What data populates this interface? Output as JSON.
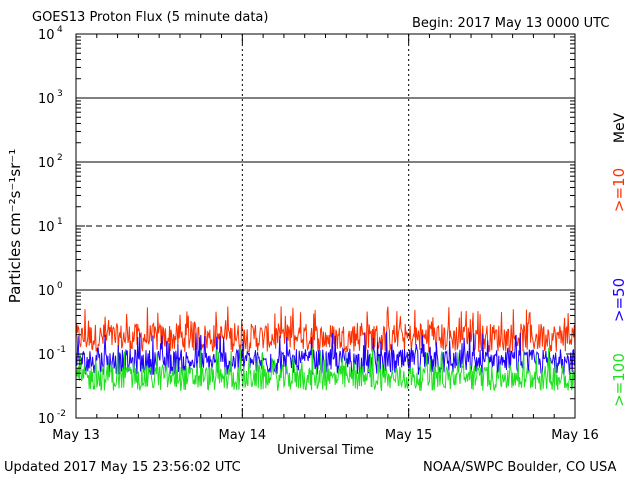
{
  "header": {
    "title": "GOES13 Proton Flux (5 minute data)",
    "begin": "Begin: 2017 May 13 0000 UTC"
  },
  "footer": {
    "updated": "Updated 2017 May 15 23:56:02 UTC",
    "credit": "NOAA/SWPC Boulder, CO USA"
  },
  "chart_data": {
    "type": "line",
    "title": "GOES13 Proton Flux (5 minute data)",
    "xlabel": "Universal Time",
    "ylabel": "Particles cm⁻²s⁻¹sr⁻¹",
    "yscale": "log",
    "ylim": [
      0.01,
      10000
    ],
    "xlim": [
      "May 13",
      "May 16"
    ],
    "x_ticks": [
      "May 13",
      "May 14",
      "May 15",
      "May 16"
    ],
    "y_ticks": [
      {
        "base": "10",
        "exp": "-2"
      },
      {
        "base": "10",
        "exp": "-1"
      },
      {
        "base": "10",
        "exp": "0"
      },
      {
        "base": "10",
        "exp": "1"
      },
      {
        "base": "10",
        "exp": "2"
      },
      {
        "base": "10",
        "exp": "3"
      },
      {
        "base": "10",
        "exp": "4"
      }
    ],
    "reference_lines": [
      {
        "value": 1000,
        "style": "solid"
      },
      {
        "value": 100,
        "style": "solid"
      },
      {
        "value": 10,
        "style": "dashed"
      },
      {
        "value": 1,
        "style": "solid"
      }
    ],
    "unit_label": "MeV",
    "series": [
      {
        "name": ">=10",
        "color": "#ff3000",
        "level": 0.18,
        "spread": 0.45
      },
      {
        "name": ">=50",
        "color": "#2000ff",
        "level": 0.075,
        "spread": 0.4
      },
      {
        "name": ">=100",
        "color": "#20e020",
        "level": 0.042,
        "spread": 0.4
      }
    ]
  }
}
